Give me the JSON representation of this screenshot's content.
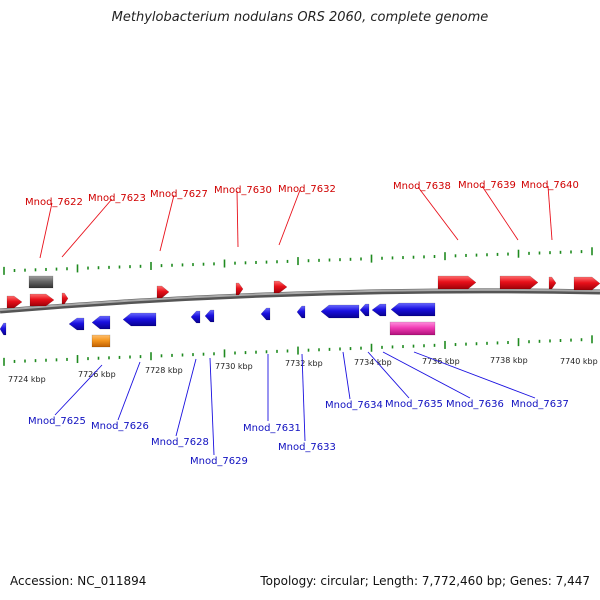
{
  "title": "Methylobacterium nodulans ORS 2060, complete genome",
  "footer": {
    "accession": "Accession: NC_011894",
    "stats": "Topology: circular; Length: 7,772,460 bp; Genes: 7,447"
  },
  "colors": {
    "forward": "#e8101a",
    "reverse": "#1a10e0",
    "other_gray": "#666666",
    "other_orange": "#f5961e",
    "other_pink": "#f03cb4",
    "tick": "#1f8a1f",
    "backbone": "#808080"
  },
  "scale": {
    "unit": "kbp",
    "labels": [
      "7724 kbp",
      "7726 kbp",
      "7728 kbp",
      "7730 kbp",
      "7732 kbp",
      "7734 kbp",
      "7736 kbp",
      "7738 kbp",
      "7740 kbp"
    ]
  },
  "forward_genes": [
    "Mnod_7622",
    "Mnod_7623",
    "Mnod_7627",
    "Mnod_7630",
    "Mnod_7632",
    "Mnod_7638",
    "Mnod_7639",
    "Mnod_7640"
  ],
  "reverse_genes": [
    "Mnod_7625",
    "Mnod_7626",
    "Mnod_7628",
    "Mnod_7629",
    "Mnod_7631",
    "Mnod_7633",
    "Mnod_7634",
    "Mnod_7635",
    "Mnod_7636",
    "Mnod_7637"
  ]
}
